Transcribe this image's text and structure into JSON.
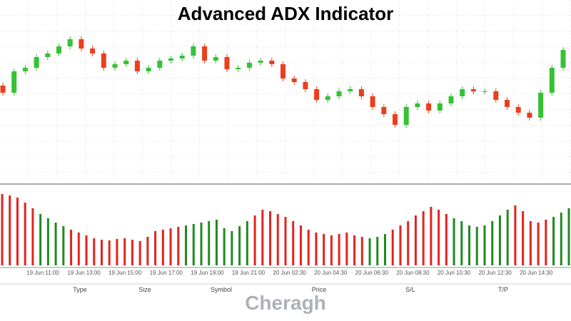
{
  "chart_data": [
    {
      "type": "candlestick",
      "title": "Advanced ADX Indicator",
      "up_color": "#35c235",
      "down_color": "#ea3f1c",
      "ylim": [
        -55,
        200
      ],
      "open": [
        80,
        70,
        100,
        105,
        120,
        125,
        135,
        145,
        132,
        125,
        105,
        110,
        115,
        100,
        105,
        115,
        118,
        122,
        135,
        115,
        120,
        103,
        105,
        112,
        115,
        110,
        90,
        85,
        75,
        60,
        65,
        72,
        75,
        65,
        50,
        40,
        25,
        50,
        55,
        45,
        55,
        65,
        75,
        72,
        72,
        60,
        50,
        42,
        35,
        70,
        105
      ],
      "high": [
        84,
        104,
        109,
        124,
        129,
        139,
        149,
        149,
        136,
        129,
        114,
        119,
        119,
        109,
        119,
        122,
        126,
        139,
        139,
        124,
        124,
        109,
        116,
        119,
        119,
        114,
        94,
        89,
        79,
        69,
        76,
        79,
        79,
        69,
        54,
        44,
        54,
        59,
        59,
        59,
        69,
        79,
        79,
        76,
        76,
        64,
        54,
        46,
        74,
        109,
        134
      ],
      "low": [
        66,
        66,
        96,
        101,
        116,
        121,
        131,
        128,
        121,
        101,
        101,
        106,
        96,
        96,
        101,
        111,
        114,
        118,
        111,
        111,
        99,
        99,
        101,
        108,
        106,
        86,
        81,
        71,
        56,
        56,
        61,
        68,
        61,
        46,
        36,
        21,
        21,
        46,
        41,
        41,
        51,
        61,
        68,
        68,
        56,
        46,
        38,
        31,
        31,
        66,
        101
      ],
      "close": [
        70,
        100,
        105,
        120,
        125,
        135,
        145,
        132,
        125,
        105,
        110,
        115,
        100,
        105,
        115,
        118,
        122,
        135,
        115,
        120,
        103,
        105,
        112,
        115,
        110,
        90,
        85,
        75,
        60,
        65,
        72,
        75,
        65,
        50,
        40,
        25,
        50,
        55,
        45,
        55,
        65,
        75,
        72,
        72,
        60,
        50,
        42,
        35,
        70,
        105,
        130
      ],
      "time_labels": [
        "19 Jun 11:00",
        "19 Jun 13:00",
        "19 Jun 15:00",
        "19 Jun 17:00",
        "19 Jun 19:00",
        "19 Jun 21:00",
        "20 Jun 02:30",
        "20 Jun 04:30",
        "20 Jun 06:30",
        "20 Jun 08:30",
        "20 Jun 10:30",
        "20 Jun 12:30",
        "20 Jun 14:30"
      ]
    },
    {
      "type": "histogram-bars",
      "ylim": [
        0,
        110
      ],
      "palette": {
        "green": "#1f8a1f",
        "red": "#e3231f"
      },
      "values": [
        100,
        98,
        95,
        88,
        80,
        72,
        66,
        60,
        55,
        50,
        46,
        42,
        38,
        36,
        35,
        37,
        38,
        36,
        34,
        40,
        48,
        50,
        52,
        54,
        56,
        58,
        60,
        62,
        64,
        52,
        48,
        55,
        62,
        70,
        78,
        76,
        72,
        68,
        62,
        56,
        50,
        46,
        44,
        42,
        44,
        46,
        42,
        40,
        38,
        40,
        44,
        50,
        56,
        62,
        70,
        76,
        82,
        78,
        72,
        66,
        62,
        56,
        54,
        56,
        62,
        70,
        78,
        84,
        76,
        62,
        60,
        64,
        68,
        74,
        80
      ],
      "bar_colors": [
        "red",
        "red",
        "red",
        "red",
        "red",
        "green",
        "green",
        "green",
        "green",
        "red",
        "red",
        "red",
        "red",
        "red",
        "red",
        "red",
        "red",
        "red",
        "red",
        "red",
        "red",
        "red",
        "red",
        "red",
        "green",
        "green",
        "green",
        "green",
        "green",
        "green",
        "green",
        "green",
        "green",
        "red",
        "red",
        "red",
        "red",
        "red",
        "red",
        "red",
        "red",
        "red",
        "red",
        "red",
        "red",
        "red",
        "red",
        "red",
        "green",
        "green",
        "green",
        "red",
        "red",
        "red",
        "red",
        "red",
        "red",
        "red",
        "red",
        "green",
        "green",
        "green",
        "green",
        "green",
        "green",
        "green",
        "green",
        "red",
        "red",
        "red",
        "red",
        "red",
        "green",
        "green",
        "green"
      ]
    }
  ],
  "footer": {
    "columns": [
      "Type",
      "Size",
      "Symbol",
      "Price",
      "S/L",
      "T/P"
    ],
    "watermark": "Cheragh"
  }
}
